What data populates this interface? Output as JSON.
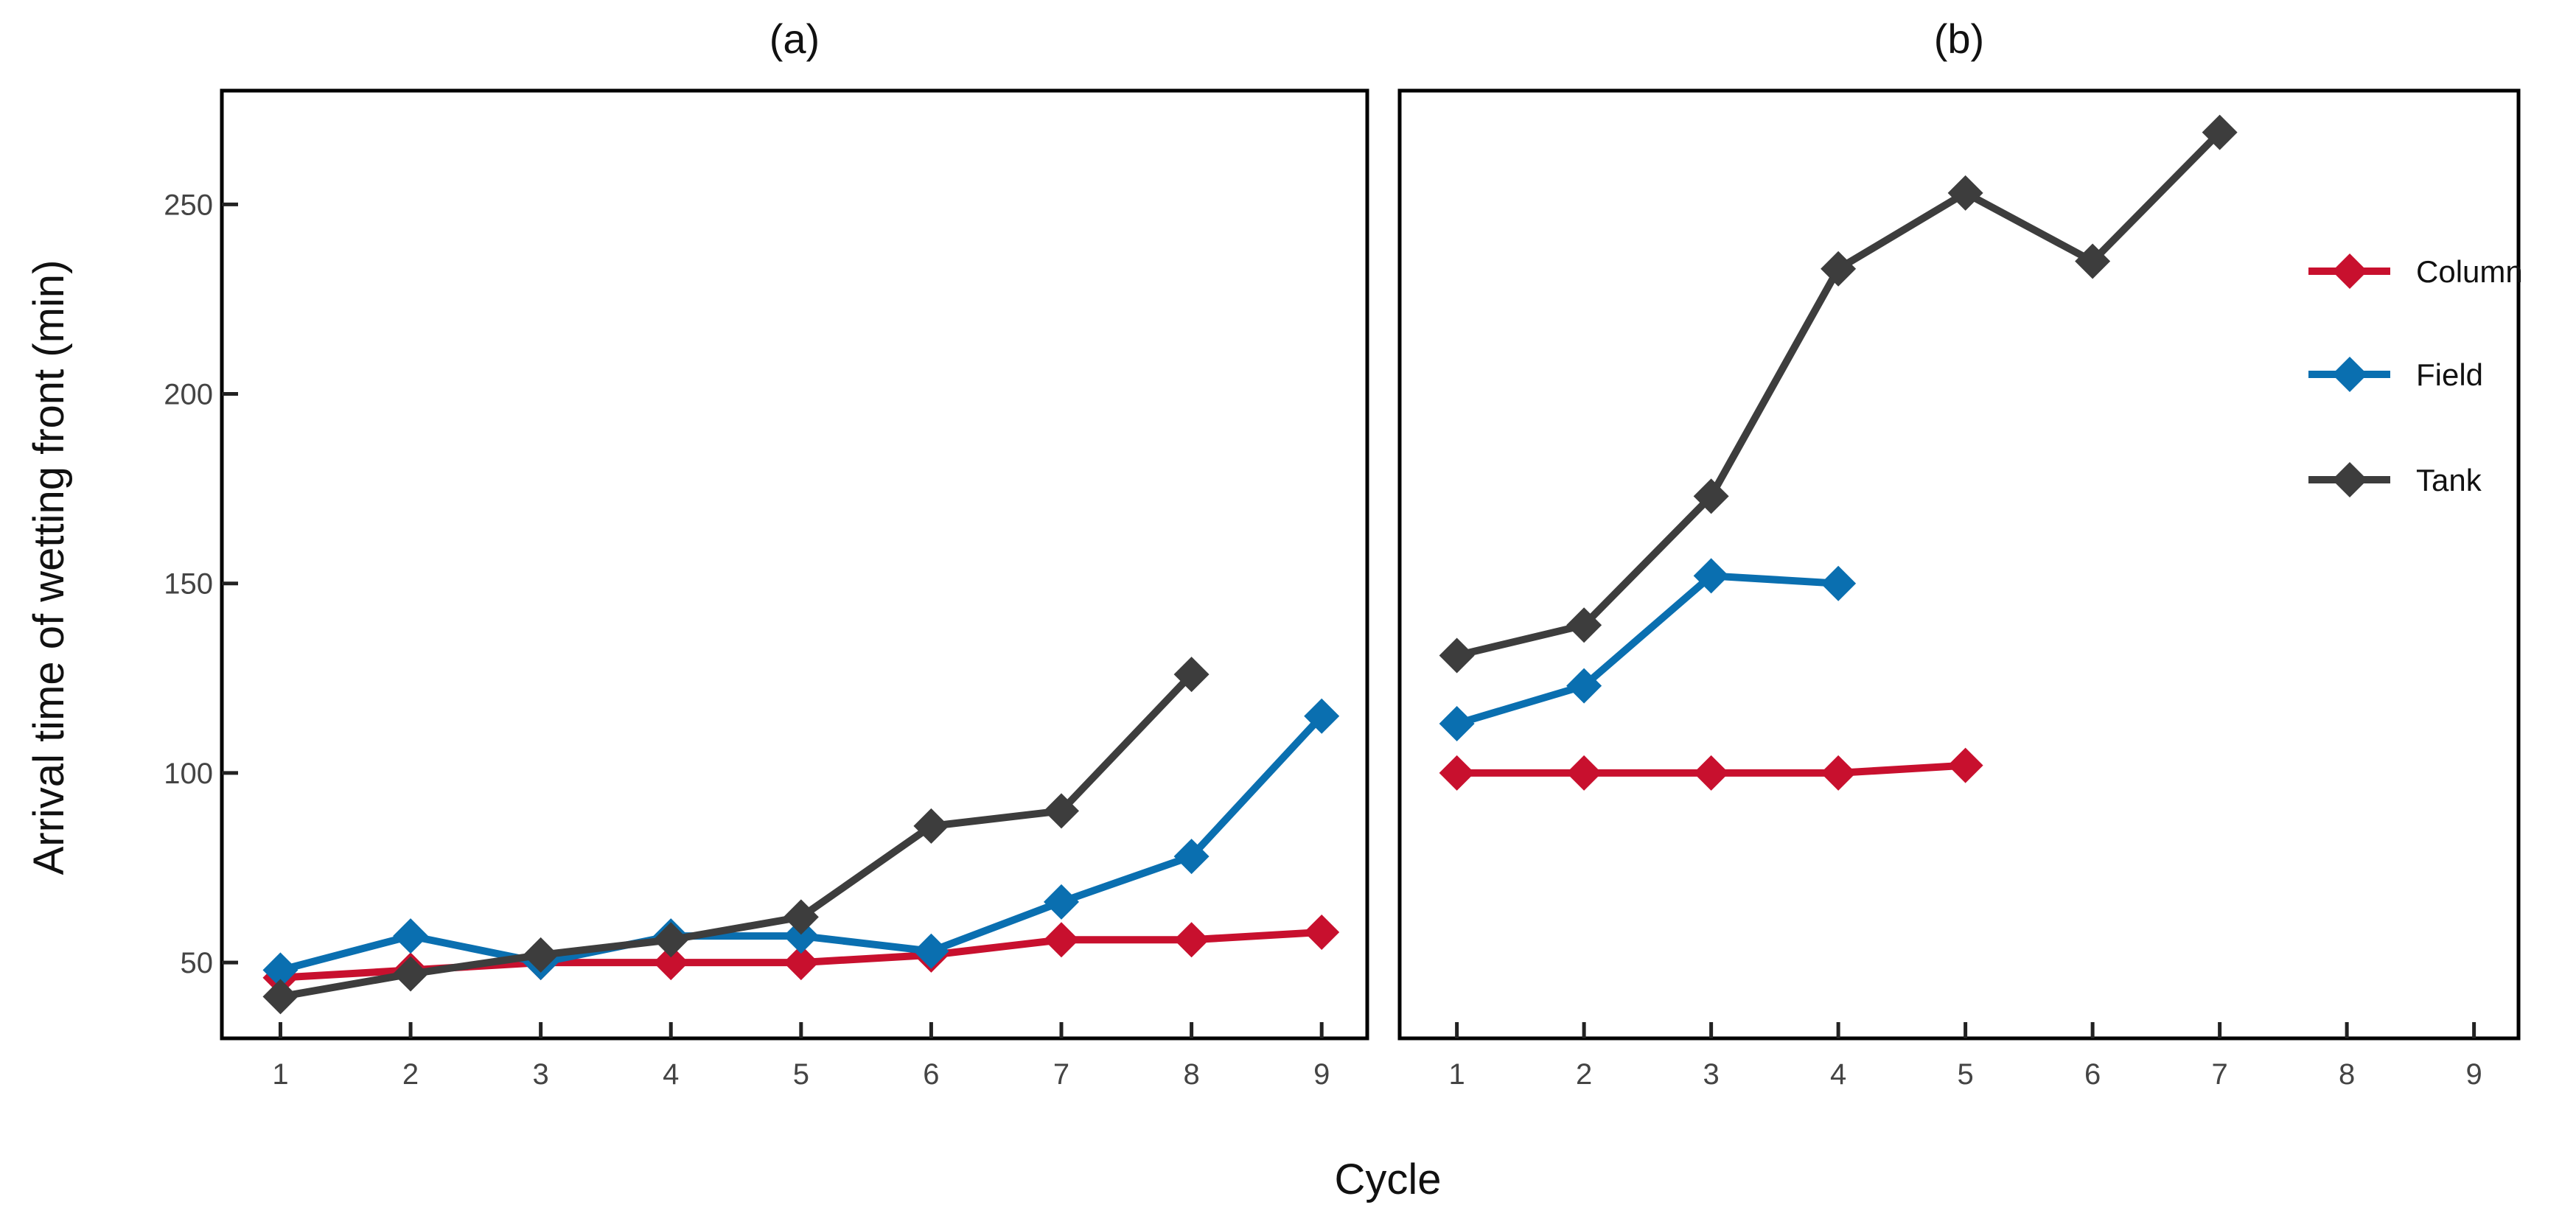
{
  "chart_data": [
    {
      "type": "line",
      "title": "(a)",
      "xlabel": "Cycle",
      "ylabel": "Arrival time of wetting front (min)",
      "x_ticks": [
        1,
        2,
        3,
        4,
        5,
        6,
        7,
        8,
        9
      ],
      "y_ticks": [
        50,
        100,
        150,
        200,
        250
      ],
      "xlim": [
        0.55,
        9.35
      ],
      "ylim": [
        30,
        280
      ],
      "grid": false,
      "series": [
        {
          "name": "Column",
          "color": "#c8102e",
          "x": [
            1,
            2,
            3,
            4,
            5,
            6,
            7,
            8,
            9
          ],
          "y": [
            46,
            48,
            50,
            50,
            50,
            52,
            56,
            56,
            58
          ]
        },
        {
          "name": "Field",
          "color": "#0a6fb0",
          "x": [
            1,
            2,
            3,
            4,
            5,
            6,
            7,
            8,
            9
          ],
          "y": [
            48,
            57,
            50,
            57,
            57,
            53,
            66,
            78,
            115
          ]
        },
        {
          "name": "Tank",
          "color": "#3d3d3d",
          "x": [
            1,
            2,
            3,
            4,
            5,
            6,
            7,
            8
          ],
          "y": [
            41,
            47,
            52,
            56,
            62,
            86,
            90,
            126
          ]
        }
      ]
    },
    {
      "type": "line",
      "title": "(b)",
      "xlabel": "Cycle",
      "x_ticks": [
        1,
        2,
        3,
        4,
        5,
        6,
        7,
        8,
        9
      ],
      "xlim": [
        0.55,
        9.35
      ],
      "ylim": [
        30,
        280
      ],
      "grid": false,
      "legend": "right",
      "series": [
        {
          "name": "Column",
          "color": "#c8102e",
          "x": [
            1,
            2,
            3,
            4,
            5
          ],
          "y": [
            100,
            100,
            100,
            100,
            102
          ]
        },
        {
          "name": "Field",
          "color": "#0a6fb0",
          "x": [
            1,
            2,
            3,
            4
          ],
          "y": [
            113,
            123,
            152,
            150
          ]
        },
        {
          "name": "Tank",
          "color": "#3d3d3d",
          "x": [
            1,
            2,
            3,
            4,
            5,
            6,
            7
          ],
          "y": [
            131,
            139,
            173,
            233,
            253,
            235,
            269
          ]
        }
      ]
    }
  ]
}
